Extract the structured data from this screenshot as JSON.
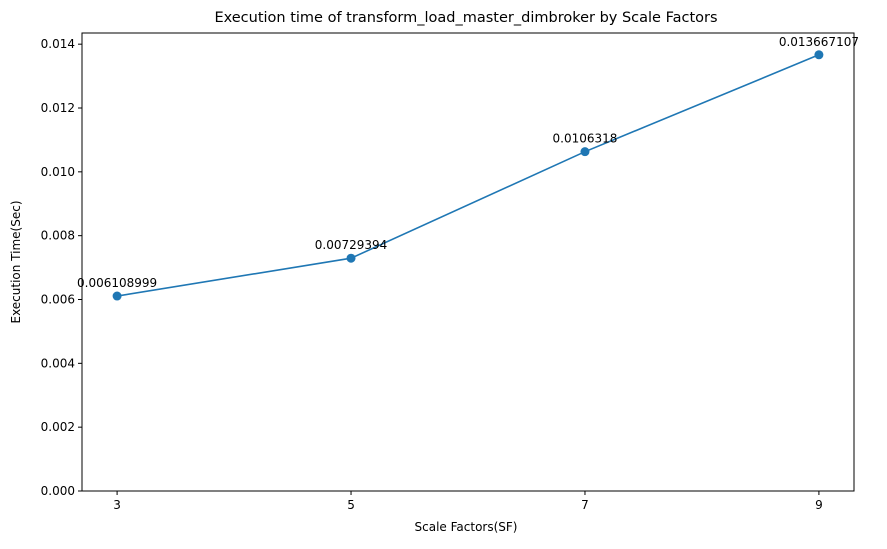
{
  "chart_data": {
    "type": "line",
    "title": "Execution time of transform_load_master_dimbroker by Scale Factors",
    "xlabel": "Scale Factors(SF)",
    "ylabel": "Execution Time(Sec)",
    "x": [
      3,
      5,
      7,
      9
    ],
    "series": [
      {
        "values": [
          0.006108999,
          0.00729394,
          0.0106318,
          0.013667107
        ],
        "data_labels": [
          "0.006108999",
          "0.00729394",
          "0.0106318",
          "0.013667107"
        ]
      }
    ],
    "xticks": [
      "3",
      "5",
      "7",
      "9"
    ],
    "yticks": [
      "0.000",
      "0.002",
      "0.004",
      "0.006",
      "0.008",
      "0.010",
      "0.012",
      "0.014"
    ],
    "xlim": [
      2.7,
      9.3
    ],
    "ylim": [
      0,
      0.01435
    ],
    "grid": false,
    "line_color": "#1f77b4"
  }
}
